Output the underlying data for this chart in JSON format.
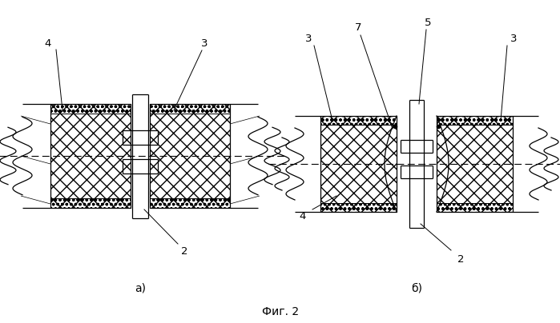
{
  "fig_width": 6.99,
  "fig_height": 4.04,
  "dpi": 100,
  "bg_color": "#ffffff",
  "line_color": "#000000",
  "caption": "Фиг. 2",
  "label_a": "а)",
  "label_b": "б)"
}
